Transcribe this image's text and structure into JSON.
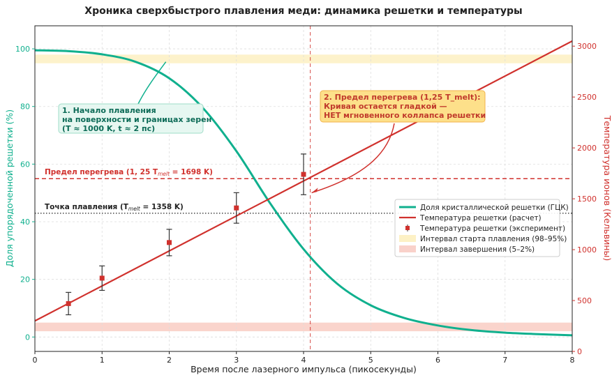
{
  "chart_data": {
    "type": "line",
    "title": "Хроника сверхбыстрого плавления меди: динамика решетки и температуры",
    "xlabel": "Время после лазерного импульса (пикосекунды)",
    "ylabel_left": "Доля упорядоченной решетки (%)",
    "ylabel_right": "Температура ионов (Кельвины)",
    "xlim": [
      0,
      8
    ],
    "ylim_left": [
      -5,
      108
    ],
    "ylim_right": [
      0,
      3200
    ],
    "x_ticks": [
      "0",
      "1",
      "2",
      "3",
      "4",
      "5",
      "6",
      "7",
      "8"
    ],
    "y_left_ticks": [
      "0",
      "20",
      "40",
      "60",
      "80",
      "100"
    ],
    "y_right_ticks": [
      "0",
      "500",
      "1000",
      "1500",
      "2000",
      "2500",
      "3000"
    ],
    "grid": true,
    "legend_position": "center-right",
    "colors": {
      "fraction": "#10b08e",
      "temperature": "#d0312d",
      "superheat_line": "#d0312d",
      "melt_line": "#333333",
      "start_band": "#fdf0c2",
      "end_band": "#f9cfc7",
      "annot1_bg": "#e6f7f1",
      "annot1_border": "#9fdcc8",
      "annot2_bg": "#fde08a",
      "annot2_border": "#f2b24a",
      "annot1_text": "#0c6b57",
      "annot2_text": "#c0392b"
    },
    "fraction_series": {
      "name": "Доля кристаллической решетки (ГЦК)",
      "x": [
        0,
        0.5,
        1,
        1.5,
        2,
        2.5,
        3,
        3.5,
        4,
        4.5,
        5,
        5.5,
        6,
        6.5,
        7,
        7.5,
        8
      ],
      "y": [
        99.5,
        99.2,
        98.1,
        95.5,
        89.8,
        79.5,
        64.5,
        46.5,
        30.5,
        18.5,
        11.0,
        6.6,
        4.0,
        2.4,
        1.5,
        1.0,
        0.6
      ]
    },
    "temperature_series": {
      "name": "Температура решетки (расчет)",
      "x": [
        0,
        8
      ],
      "y": [
        300,
        3050
      ]
    },
    "experiment_series": {
      "name": "Температура решетки (эксперимент)",
      "x": [
        0.5,
        1,
        2,
        3,
        4
      ],
      "y": [
        470,
        720,
        1070,
        1410,
        1740
      ],
      "yerr": [
        110,
        120,
        130,
        150,
        200
      ]
    },
    "bands": [
      {
        "name": "Интервал старта плавления (98–95%)",
        "y0": 95,
        "y1": 98
      },
      {
        "name": "Интервал завершения (5–2%)",
        "y0": 2,
        "y1": 5
      }
    ],
    "hlines": [
      {
        "label": "Предел перегрева (1, 25 T",
        "sub": "melt",
        "tail": " = 1698 K)",
        "y_kelvin": 1698
      },
      {
        "label": "Точка плавления (T",
        "sub": "melt",
        "tail": " = 1358 K)",
        "y_kelvin": 1358
      }
    ],
    "vline_x": 4.1,
    "annotations": [
      {
        "lines": [
          "1. Начало плавления",
          "на поверхности и границах зерен",
          "(T ≈ 1000 K, t ≈ 2 пс)"
        ],
        "target_x": 1.95,
        "target_y": 95.5
      },
      {
        "lines": [
          "2. Предел перегрева (1,25 T_melt):",
          "Кривая остается гладкой —",
          "НЕТ мгновенного коллапса решетки"
        ],
        "target_x": 4.1,
        "target_y_kelvin": 1580
      }
    ]
  }
}
